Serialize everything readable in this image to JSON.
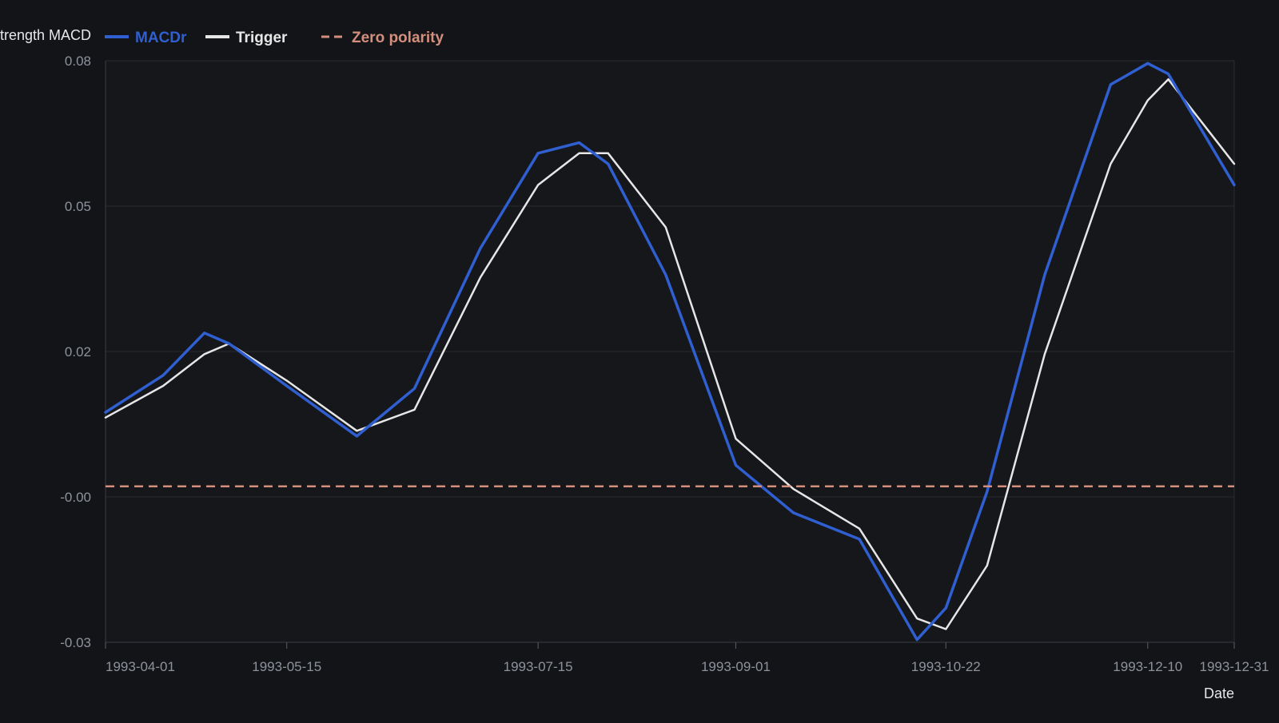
{
  "chart_data": {
    "type": "line",
    "ylabel": "Strength MACD",
    "xlabel": "Date",
    "ylim": [
      -0.03,
      0.08
    ],
    "yticks": [
      {
        "value": 0.08,
        "label": "0.08"
      },
      {
        "value": 0.0525,
        "label": "0.05"
      },
      {
        "value": 0.025,
        "label": "0.02"
      },
      {
        "value": -0.0025,
        "label": "-0.00"
      },
      {
        "value": -0.03,
        "label": "-0.03"
      }
    ],
    "xlim": [
      "1993-04-01",
      "1993-12-31"
    ],
    "xticks": [
      {
        "date": "1993-04-01",
        "label": "1993-04-01"
      },
      {
        "date": "1993-05-15",
        "label": "1993-05-15"
      },
      {
        "date": "1993-07-15",
        "label": "1993-07-15"
      },
      {
        "date": "1993-09-01",
        "label": "1993-09-01"
      },
      {
        "date": "1993-10-22",
        "label": "1993-10-22"
      },
      {
        "date": "1993-12-10",
        "label": "1993-12-10"
      },
      {
        "date": "1993-12-31",
        "label": "1993-12-31"
      }
    ],
    "grid": true,
    "legend_position": "top-left",
    "series": [
      {
        "name": "MACDr",
        "color": "#2f5fd0",
        "style": "solid",
        "points": [
          {
            "date": "1993-04-01",
            "y": 0.0135
          },
          {
            "date": "1993-04-15",
            "y": 0.0205
          },
          {
            "date": "1993-04-25",
            "y": 0.0285
          },
          {
            "date": "1993-05-01",
            "y": 0.0265
          },
          {
            "date": "1993-05-15",
            "y": 0.0185
          },
          {
            "date": "1993-06-01",
            "y": 0.009
          },
          {
            "date": "1993-06-15",
            "y": 0.018
          },
          {
            "date": "1993-07-01",
            "y": 0.0445
          },
          {
            "date": "1993-07-15",
            "y": 0.0625
          },
          {
            "date": "1993-07-25",
            "y": 0.0645
          },
          {
            "date": "1993-08-01",
            "y": 0.0605
          },
          {
            "date": "1993-08-15",
            "y": 0.0395
          },
          {
            "date": "1993-09-01",
            "y": 0.0035
          },
          {
            "date": "1993-09-15",
            "y": -0.0055
          },
          {
            "date": "1993-10-01",
            "y": -0.0105
          },
          {
            "date": "1993-10-15",
            "y": -0.0295
          },
          {
            "date": "1993-10-22",
            "y": -0.0235
          },
          {
            "date": "1993-11-01",
            "y": -0.0015
          },
          {
            "date": "1993-11-15",
            "y": 0.0395
          },
          {
            "date": "1993-12-01",
            "y": 0.0755
          },
          {
            "date": "1993-12-10",
            "y": 0.0795
          },
          {
            "date": "1993-12-15",
            "y": 0.0775
          },
          {
            "date": "1993-12-31",
            "y": 0.0565
          }
        ]
      },
      {
        "name": "Trigger",
        "color": "#e6e6e6",
        "style": "solid",
        "points": [
          {
            "date": "1993-04-01",
            "y": 0.0125
          },
          {
            "date": "1993-04-15",
            "y": 0.0185
          },
          {
            "date": "1993-04-25",
            "y": 0.0245
          },
          {
            "date": "1993-05-01",
            "y": 0.0265
          },
          {
            "date": "1993-05-15",
            "y": 0.0195
          },
          {
            "date": "1993-06-01",
            "y": 0.01
          },
          {
            "date": "1993-06-15",
            "y": 0.014
          },
          {
            "date": "1993-07-01",
            "y": 0.039
          },
          {
            "date": "1993-07-15",
            "y": 0.0565
          },
          {
            "date": "1993-07-25",
            "y": 0.0625
          },
          {
            "date": "1993-08-01",
            "y": 0.0625
          },
          {
            "date": "1993-08-15",
            "y": 0.0485
          },
          {
            "date": "1993-09-01",
            "y": 0.0085
          },
          {
            "date": "1993-09-15",
            "y": -0.001
          },
          {
            "date": "1993-10-01",
            "y": -0.0085
          },
          {
            "date": "1993-10-15",
            "y": -0.0255
          },
          {
            "date": "1993-10-22",
            "y": -0.0275
          },
          {
            "date": "1993-11-01",
            "y": -0.0155
          },
          {
            "date": "1993-11-15",
            "y": 0.0245
          },
          {
            "date": "1993-12-01",
            "y": 0.0605
          },
          {
            "date": "1993-12-10",
            "y": 0.0725
          },
          {
            "date": "1993-12-15",
            "y": 0.0765
          },
          {
            "date": "1993-12-31",
            "y": 0.0605
          }
        ]
      },
      {
        "name": "Zero polarity",
        "color": "#d48e7d",
        "style": "dashed",
        "points": [
          {
            "date": "1993-04-01",
            "y": -0.0005
          },
          {
            "date": "1993-12-31",
            "y": -0.0005
          }
        ]
      }
    ]
  }
}
